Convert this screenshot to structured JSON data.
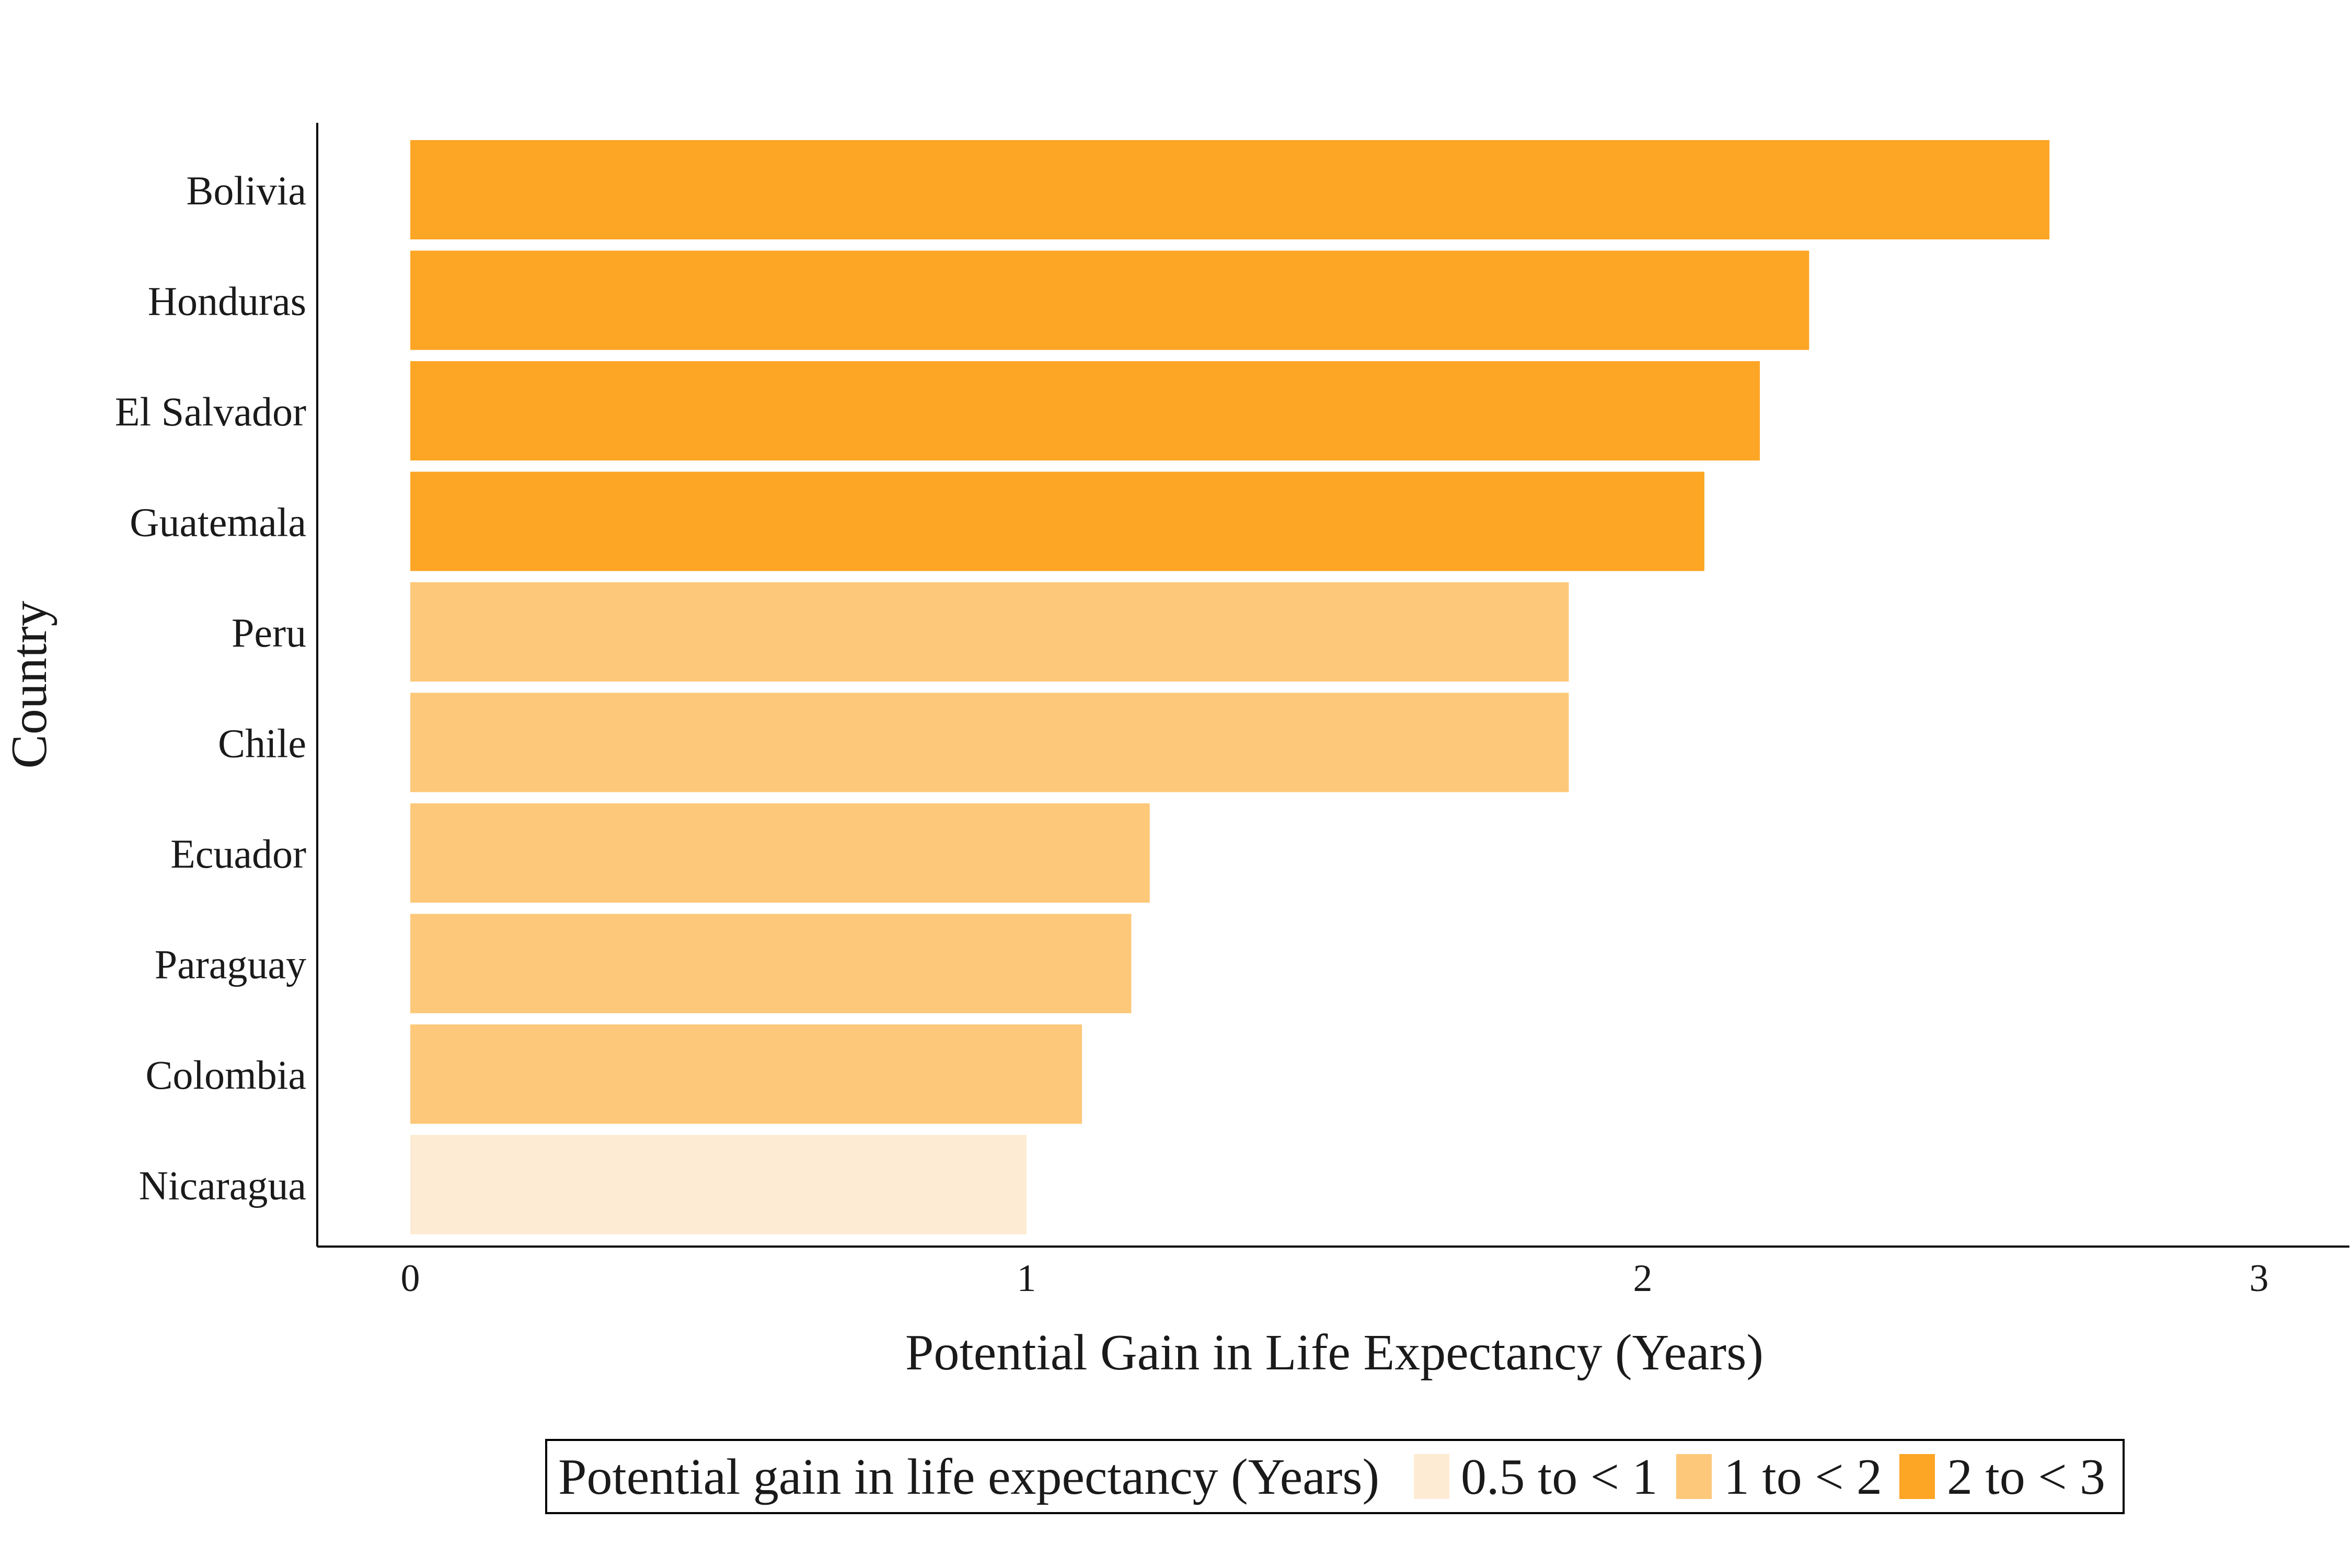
{
  "chart_data": {
    "type": "bar",
    "orientation": "horizontal",
    "xlabel": "Potential Gain in Life Expectancy (Years)",
    "ylabel": "Country",
    "xlim": [
      0,
      3
    ],
    "xticks": [
      "0",
      "1",
      "2",
      "3"
    ],
    "grid": false,
    "categories": [
      "Bolivia",
      "Honduras",
      "El Salvador",
      "Guatemala",
      "Peru",
      "Chile",
      "Ecuador",
      "Paraguay",
      "Colombia",
      "Nicaragua"
    ],
    "values": [
      2.66,
      2.27,
      2.19,
      2.1,
      1.88,
      1.88,
      1.2,
      1.17,
      1.09,
      1.0
    ],
    "value_bins": [
      "2 to < 3",
      "2 to < 3",
      "2 to < 3",
      "2 to < 3",
      "1 to < 2",
      "1 to < 2",
      "1 to < 2",
      "1 to < 2",
      "1 to < 2",
      "0.5 to < 1"
    ],
    "legend": {
      "title": "Potential gain in life expectancy (Years)",
      "placement": "bottom",
      "entries": [
        {
          "label": "0.5 to < 1",
          "color": "#FDEBD3"
        },
        {
          "label": "1 to < 2",
          "color": "#FDC879"
        },
        {
          "label": "2 to < 3",
          "color": "#FDA525"
        }
      ]
    }
  }
}
